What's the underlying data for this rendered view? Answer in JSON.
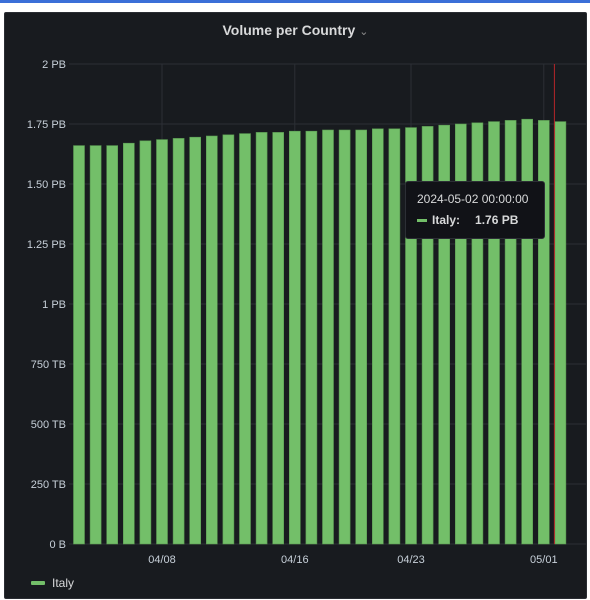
{
  "panel": {
    "title": "Volume per Country",
    "chevron": "⌄"
  },
  "chart_data": {
    "type": "bar",
    "title": "Volume per Country",
    "xlabel": "",
    "ylabel": "",
    "ylim": [
      0,
      2
    ],
    "y_unit": "PB",
    "y_ticks": [
      "0 B",
      "250 TB",
      "500 TB",
      "750 TB",
      "1 PB",
      "1.25 PB",
      "1.50 PB",
      "1.75 PB",
      "2 PB"
    ],
    "x_ticks": [
      {
        "label": "04/08",
        "index": 5
      },
      {
        "label": "04/16",
        "index": 13
      },
      {
        "label": "04/23",
        "index": 20
      },
      {
        "label": "05/01",
        "index": 28
      }
    ],
    "categories": [
      "2024-04-03",
      "2024-04-04",
      "2024-04-05",
      "2024-04-06",
      "2024-04-07",
      "2024-04-08",
      "2024-04-09",
      "2024-04-10",
      "2024-04-11",
      "2024-04-12",
      "2024-04-13",
      "2024-04-14",
      "2024-04-15",
      "2024-04-16",
      "2024-04-17",
      "2024-04-18",
      "2024-04-19",
      "2024-04-20",
      "2024-04-21",
      "2024-04-22",
      "2024-04-23",
      "2024-04-24",
      "2024-04-25",
      "2024-04-26",
      "2024-04-27",
      "2024-04-28",
      "2024-04-29",
      "2024-04-30",
      "2024-05-01",
      "2024-05-02"
    ],
    "series": [
      {
        "name": "Italy",
        "color": "#73bf69",
        "values": [
          1.66,
          1.66,
          1.66,
          1.67,
          1.68,
          1.685,
          1.69,
          1.695,
          1.7,
          1.705,
          1.71,
          1.715,
          1.715,
          1.72,
          1.72,
          1.725,
          1.725,
          1.725,
          1.73,
          1.73,
          1.735,
          1.74,
          1.745,
          1.75,
          1.755,
          1.76,
          1.765,
          1.77,
          1.765,
          1.76
        ]
      }
    ],
    "hover_index": 29,
    "grid": true,
    "legend": "bottom-left"
  },
  "tooltip": {
    "time": "2024-05-02 00:00:00",
    "series_label": "Italy:",
    "value": "1.76 PB"
  },
  "legend": {
    "items": [
      {
        "label": "Italy",
        "color": "#73bf69"
      }
    ]
  },
  "colors": {
    "background": "#181b1f",
    "grid": "#2c2f35",
    "axis_text": "#c7d0d9",
    "bar": "#73bf69",
    "crosshair": "#b5262a"
  }
}
